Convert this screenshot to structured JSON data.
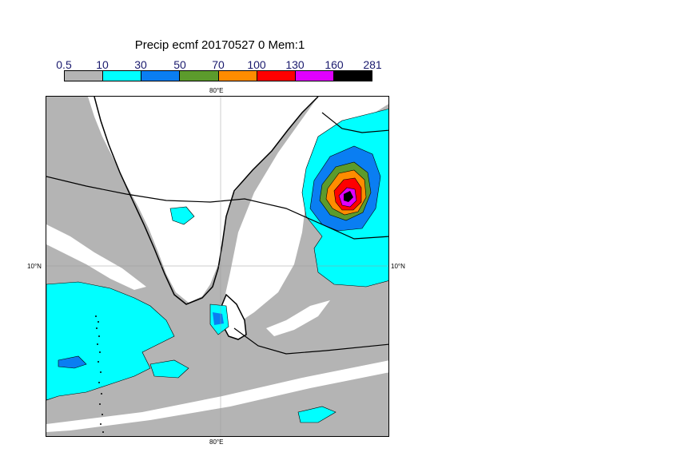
{
  "title": "Precip ecmf 20170527 0 Mem:1",
  "colorbar": {
    "labels": [
      "0.5",
      "10",
      "30",
      "50",
      "70",
      "100",
      "130",
      "160",
      "281"
    ],
    "colors": [
      "#b4b4b4",
      "#00ffff",
      "#0a7ef2",
      "#5c9b2c",
      "#ff8c00",
      "#ff0000",
      "#e000ff",
      "#000000"
    ]
  },
  "map": {
    "lon_label_top": "80°E",
    "lon_label_bottom": "80°E",
    "lat_label_left": "10°N",
    "lat_label_right": "10°N",
    "land_color": "#ffffff",
    "precip_base_color": "#b4b4b4"
  }
}
